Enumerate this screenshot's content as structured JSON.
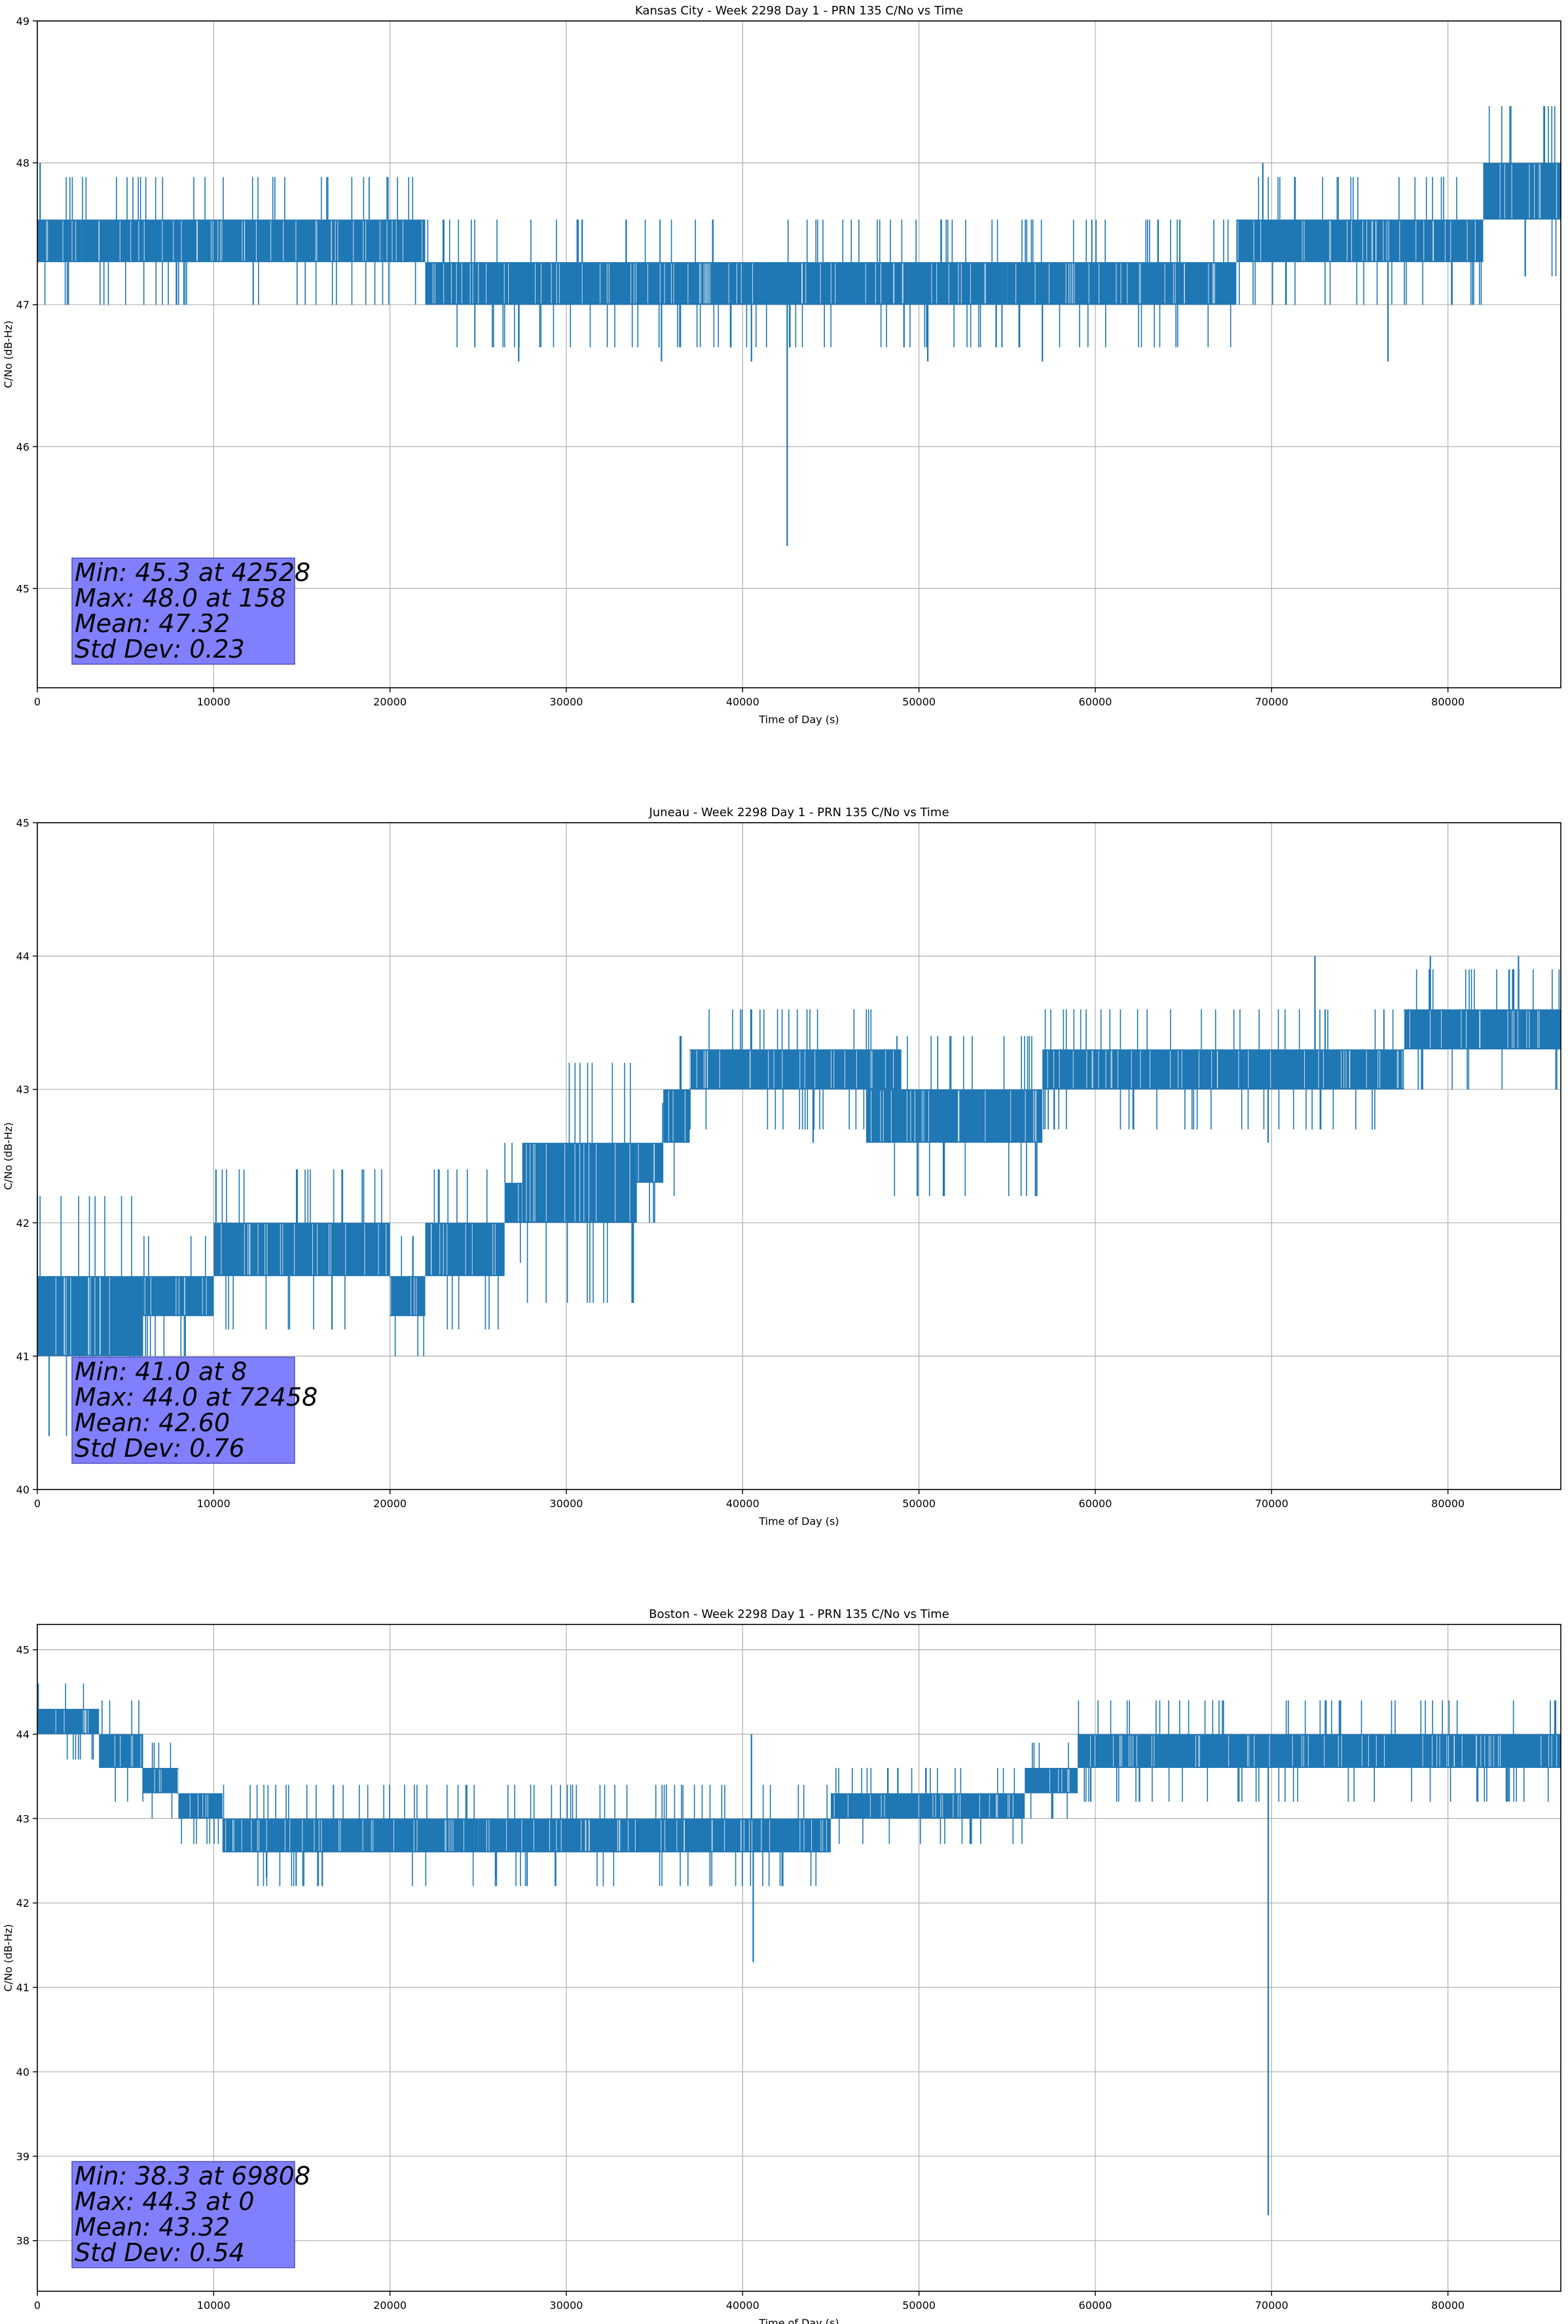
{
  "chart_data": [
    {
      "type": "line",
      "title": "Kansas City - Week 2298 Day 1 - PRN 135 C/No vs Time",
      "xlabel": "Time of Day (s)",
      "ylabel": "C/No (dB-Hz)",
      "xlim": [
        0,
        86400
      ],
      "ylim": [
        44.3,
        49
      ],
      "xticks": [
        0,
        10000,
        20000,
        30000,
        40000,
        50000,
        60000,
        70000,
        80000
      ],
      "yticks": [
        45,
        46,
        47,
        48,
        49
      ],
      "grid": true,
      "line_color": "#1f77b4",
      "series": [
        {
          "segments": [
            {
              "x": [
                0,
                2500
              ],
              "low": 47.3,
              "high": 47.6
            },
            {
              "x": [
                2500,
                14000
              ],
              "low": 47.3,
              "high": 47.6
            },
            {
              "x": [
                14000,
                19600
              ],
              "low": 47.3,
              "high": 47.6
            },
            {
              "x": [
                19600,
                22000
              ],
              "low": 47.3,
              "high": 47.6
            },
            {
              "x": [
                22000,
                55000
              ],
              "low": 47.0,
              "high": 47.3
            },
            {
              "x": [
                55000,
                60000
              ],
              "low": 47.0,
              "high": 47.3
            },
            {
              "x": [
                60000,
                68000
              ],
              "low": 47.0,
              "high": 47.3
            },
            {
              "x": [
                68000,
                76000
              ],
              "low": 47.3,
              "high": 47.6
            },
            {
              "x": [
                76000,
                82000
              ],
              "low": 47.3,
              "high": 47.6
            },
            {
              "x": [
                82000,
                86400
              ],
              "low": 47.6,
              "high": 48.0
            }
          ],
          "spikes": [
            {
              "x": 42528,
              "y": 45.3
            },
            {
              "x": 158,
              "y": 48.0
            },
            {
              "x": 69500,
              "y": 48.0
            },
            {
              "x": 27300,
              "y": 46.6
            },
            {
              "x": 35400,
              "y": 46.6
            },
            {
              "x": 40500,
              "y": 46.6
            },
            {
              "x": 50500,
              "y": 46.6
            },
            {
              "x": 76600,
              "y": 46.6
            },
            {
              "x": 57000,
              "y": 46.6
            }
          ]
        }
      ]
    },
    {
      "type": "line",
      "title": "Juneau - Week 2298 Day 1 - PRN 135 C/No vs Time",
      "xlabel": "Time of Day (s)",
      "ylabel": "C/No (dB-Hz)",
      "xlim": [
        0,
        86400
      ],
      "ylim": [
        40,
        45
      ],
      "xticks": [
        0,
        10000,
        20000,
        30000,
        40000,
        50000,
        60000,
        70000,
        80000
      ],
      "yticks": [
        40,
        41,
        42,
        43,
        44,
        45
      ],
      "grid": true,
      "line_color": "#1f77b4",
      "series": [
        {
          "segments": [
            {
              "x": [
                0,
                6000
              ],
              "low": 41.0,
              "high": 41.6
            },
            {
              "x": [
                6000,
                10000
              ],
              "low": 41.3,
              "high": 41.6
            },
            {
              "x": [
                10000,
                20000
              ],
              "low": 41.6,
              "high": 42.0
            },
            {
              "x": [
                20000,
                22000
              ],
              "low": 41.3,
              "high": 41.6
            },
            {
              "x": [
                22000,
                26500
              ],
              "low": 41.6,
              "high": 42.0
            },
            {
              "x": [
                26500,
                27500
              ],
              "low": 42.0,
              "high": 42.3
            },
            {
              "x": [
                27500,
                34000
              ],
              "low": 42.0,
              "high": 42.6
            },
            {
              "x": [
                34000,
                35500
              ],
              "low": 42.3,
              "high": 42.6
            },
            {
              "x": [
                35500,
                37000
              ],
              "low": 42.6,
              "high": 43.0
            },
            {
              "x": [
                37000,
                49000
              ],
              "low": 43.0,
              "high": 43.3
            },
            {
              "x": [
                47000,
                57000
              ],
              "low": 42.6,
              "high": 43.0
            },
            {
              "x": [
                57000,
                77500
              ],
              "low": 43.0,
              "high": 43.3
            },
            {
              "x": [
                77500,
                86400
              ],
              "low": 43.3,
              "high": 43.6
            }
          ],
          "spikes": [
            {
              "x": 8,
              "y": 41.0
            },
            {
              "x": 72458,
              "y": 44.0
            },
            {
              "x": 79000,
              "y": 44.0
            },
            {
              "x": 84000,
              "y": 44.0
            },
            {
              "x": 40500,
              "y": 43.6
            },
            {
              "x": 44000,
              "y": 42.6
            },
            {
              "x": 69800,
              "y": 42.6
            }
          ]
        }
      ]
    },
    {
      "type": "line",
      "title": "Boston - Week 2298 Day 1 - PRN 135 C/No vs Time",
      "xlabel": "Time of Day (s)",
      "ylabel": "C/No (dB-Hz)",
      "xlim": [
        0,
        86400
      ],
      "ylim": [
        37.4,
        45.3
      ],
      "xticks": [
        0,
        10000,
        20000,
        30000,
        40000,
        50000,
        60000,
        70000,
        80000
      ],
      "yticks": [
        38,
        39,
        40,
        41,
        42,
        43,
        44,
        45
      ],
      "grid": true,
      "line_color": "#1f77b4",
      "series": [
        {
          "segments": [
            {
              "x": [
                0,
                3500
              ],
              "low": 44.0,
              "high": 44.3
            },
            {
              "x": [
                3500,
                6000
              ],
              "low": 43.6,
              "high": 44.0
            },
            {
              "x": [
                6000,
                8000
              ],
              "low": 43.3,
              "high": 43.6
            },
            {
              "x": [
                8000,
                10500
              ],
              "low": 43.0,
              "high": 43.3
            },
            {
              "x": [
                10500,
                25000
              ],
              "low": 42.6,
              "high": 43.0
            },
            {
              "x": [
                25000,
                41000
              ],
              "low": 42.6,
              "high": 43.0
            },
            {
              "x": [
                41000,
                45000
              ],
              "low": 42.6,
              "high": 43.0
            },
            {
              "x": [
                45000,
                56000
              ],
              "low": 43.0,
              "high": 43.3
            },
            {
              "x": [
                56000,
                59000
              ],
              "low": 43.3,
              "high": 43.6
            },
            {
              "x": [
                59000,
                86400
              ],
              "low": 43.6,
              "high": 44.0
            }
          ],
          "spikes": [
            {
              "x": 69808,
              "y": 38.3
            },
            {
              "x": 0,
              "y": 44.3
            },
            {
              "x": 40600,
              "y": 41.3
            },
            {
              "x": 40500,
              "y": 44.0
            },
            {
              "x": 13000,
              "y": 42.3
            },
            {
              "x": 26000,
              "y": 42.3
            }
          ]
        }
      ]
    }
  ],
  "stats_boxes": [
    {
      "min": "Min: 45.3 at 42528",
      "max": "Max: 48.0 at 158",
      "mean": "Mean: 47.32",
      "std": "Std Dev: 0.23"
    },
    {
      "min": "Min: 41.0 at 8",
      "max": "Max: 44.0 at 72458",
      "mean": "Mean: 42.60",
      "std": "Std Dev: 0.76"
    },
    {
      "min": "Min: 38.3 at 69808",
      "max": "Max: 44.3 at 0",
      "mean": "Mean: 43.32",
      "std": "Std Dev: 0.54"
    }
  ],
  "stats_box_color": "#8080ff"
}
